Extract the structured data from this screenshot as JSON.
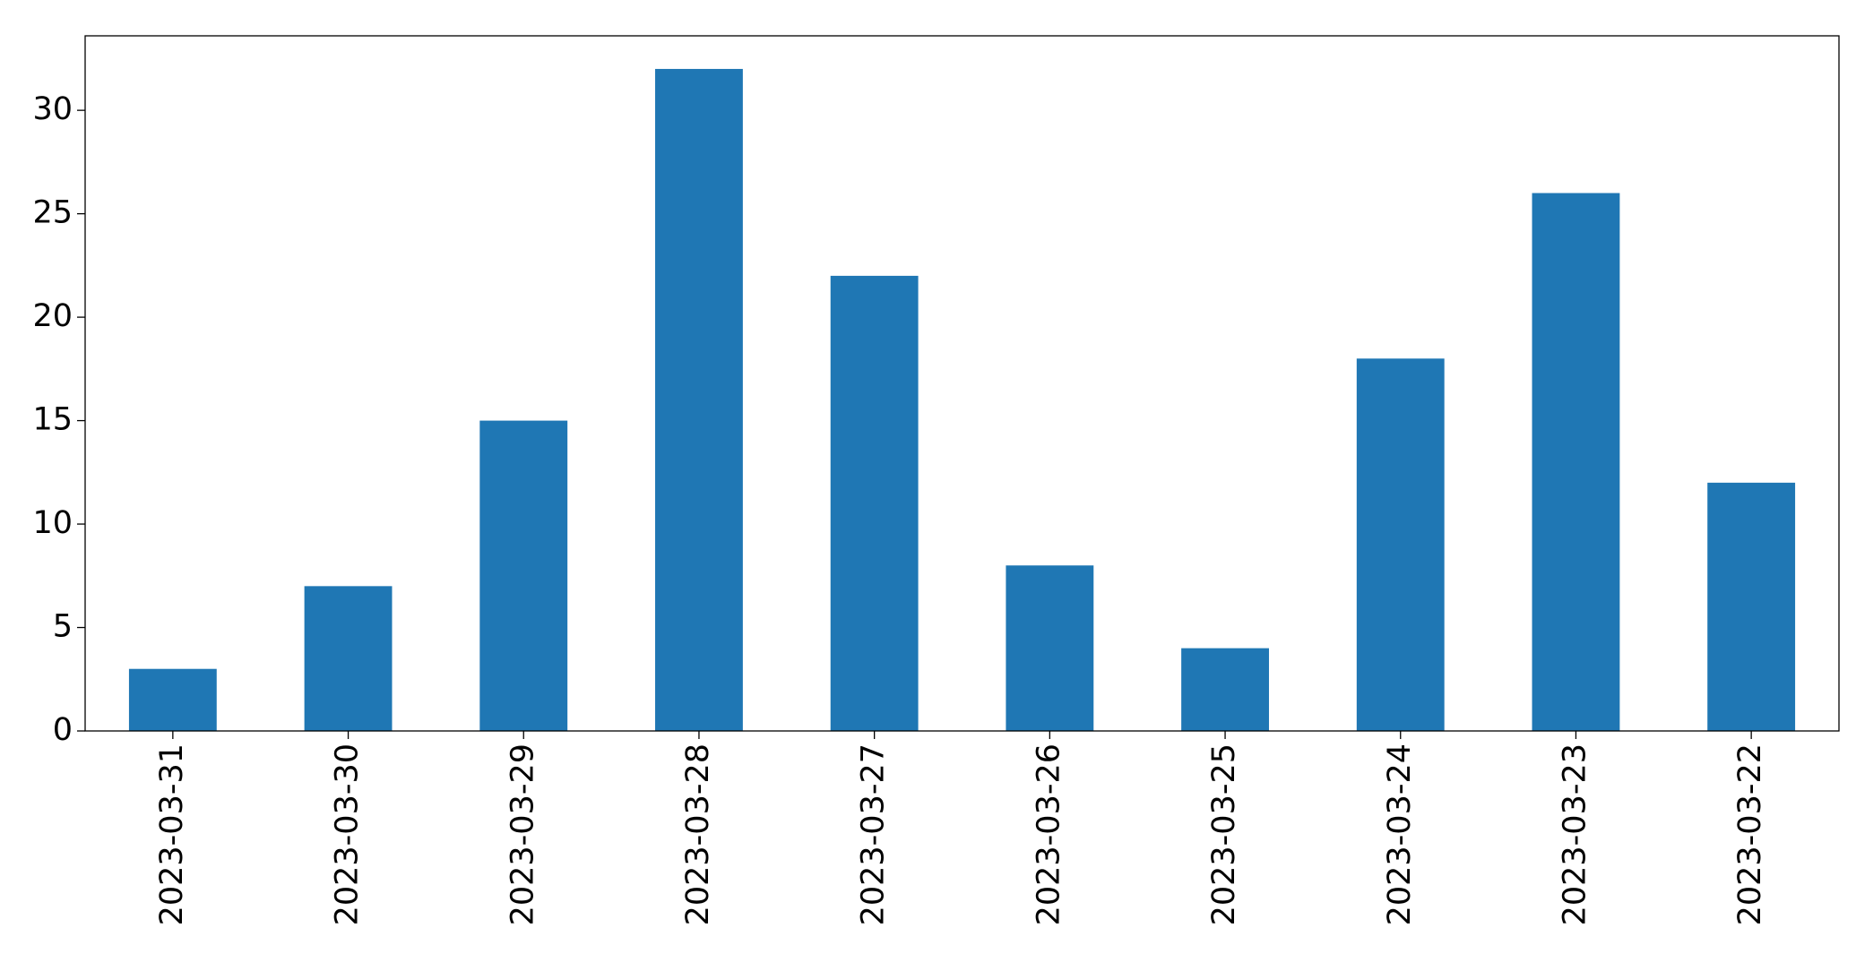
{
  "chart_data": {
    "type": "bar",
    "categories": [
      "2023-03-31",
      "2023-03-30",
      "2023-03-29",
      "2023-03-28",
      "2023-03-27",
      "2023-03-26",
      "2023-03-25",
      "2023-03-24",
      "2023-03-23",
      "2023-03-22"
    ],
    "values": [
      3,
      7,
      15,
      32,
      22,
      8,
      4,
      18,
      26,
      12
    ],
    "color": "#1f77b4",
    "ylim": [
      0,
      33.6
    ],
    "yticks": [
      0,
      5,
      10,
      15,
      20,
      25,
      30
    ],
    "grid": false
  }
}
